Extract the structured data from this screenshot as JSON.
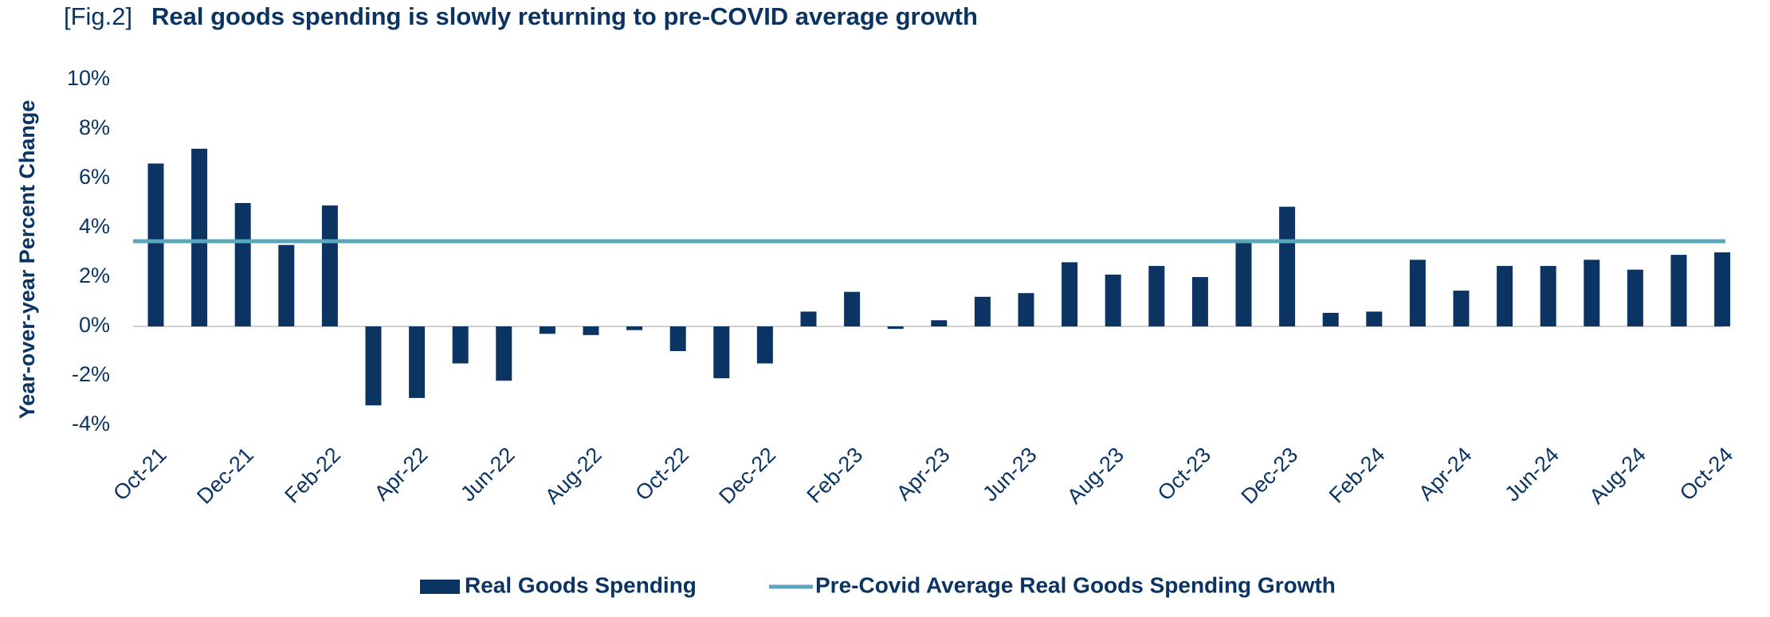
{
  "chart_data": {
    "type": "bar",
    "title_prefix": "[Fig.2]",
    "title": "Real goods spending is slowly returning to pre-COVID average growth",
    "y_label": "Year-over-year Percent Change",
    "categories": [
      "Oct-21",
      null,
      "Dec-21",
      null,
      "Feb-22",
      null,
      "Apr-22",
      null,
      "Jun-22",
      null,
      "Aug-22",
      null,
      "Oct-22",
      null,
      "Dec-22",
      null,
      "Feb-23",
      null,
      "Apr-23",
      null,
      "Jun-23",
      null,
      "Aug-23",
      null,
      "Oct-23",
      null,
      "Dec-23",
      null,
      "Feb-24",
      null,
      "Apr-24",
      null,
      "Jun-24",
      null,
      "Aug-24",
      null,
      "Oct-24"
    ],
    "series": [
      {
        "name": "Real Goods Spending",
        "color": "#0b3462",
        "values": [
          6.6,
          7.2,
          5.0,
          3.3,
          4.9,
          -3.2,
          -2.9,
          -1.5,
          -2.2,
          -0.3,
          -0.35,
          -0.15,
          -1.0,
          -2.1,
          -1.5,
          0.6,
          1.4,
          -0.1,
          0.25,
          1.2,
          1.35,
          2.6,
          2.1,
          2.45,
          2.0,
          3.4,
          4.85,
          0.55,
          0.6,
          2.7,
          1.45,
          2.45,
          2.45,
          2.7,
          2.3,
          2.9,
          3.0
        ]
      }
    ],
    "reference_line": {
      "name": "Pre-Covid Average Real Goods Spending Growth",
      "color": "#5aa7bd",
      "value": 3.45
    },
    "ylim": [
      -4,
      10
    ],
    "yticks": [
      {
        "value": -4,
        "label": "-4%"
      },
      {
        "value": -2,
        "label": "-2%"
      },
      {
        "value": 0,
        "label": "0%"
      },
      {
        "value": 2,
        "label": "2%"
      },
      {
        "value": 4,
        "label": "4%"
      },
      {
        "value": 6,
        "label": "6%"
      },
      {
        "value": 8,
        "label": "8%"
      },
      {
        "value": 10,
        "label": "10%"
      }
    ]
  }
}
